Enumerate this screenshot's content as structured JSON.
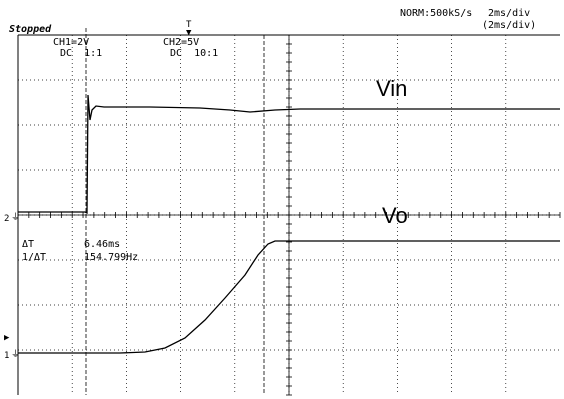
{
  "status": "Stopped",
  "header": {
    "sample_mode": "NORM:500kS/s",
    "timebase": "2ms/div",
    "timebase_sub": "(2ms/div)"
  },
  "channels": [
    {
      "label": "CH1=2V",
      "coupling": "DC  1:1"
    },
    {
      "label": "CH2=5V",
      "coupling": "DC  10:1"
    }
  ],
  "waveform_labels": {
    "vin": "Vin",
    "vo": "Vo"
  },
  "markers": {
    "trigger": "T",
    "ch2_ground": "2",
    "ch1_ground": "1"
  },
  "measurements": [
    {
      "name": "ΔT",
      "value": "6.46ms"
    },
    {
      "name": "1/ΔT",
      "value": "154.799Hz"
    }
  ],
  "colors": {
    "background": "#ffffff",
    "trace": "#000000",
    "grid": "#000000"
  }
}
